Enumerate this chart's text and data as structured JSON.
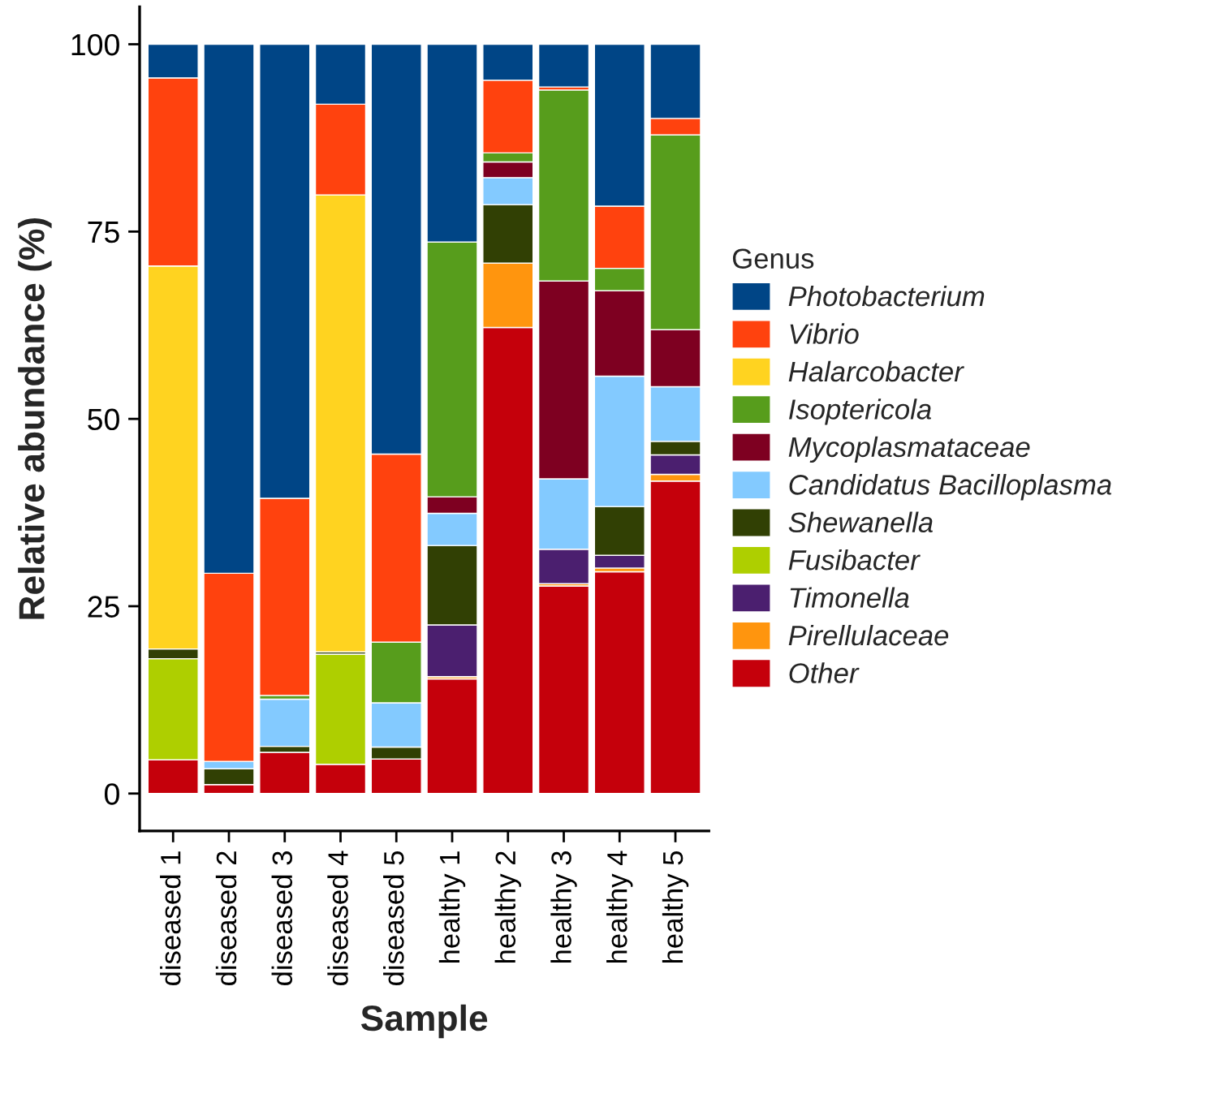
{
  "chart_data": {
    "type": "bar",
    "stacked": true,
    "xlabel": "Sample",
    "ylabel": "Relative abundance (%)",
    "legend_title": "Genus",
    "legend": "right",
    "categories": [
      "diseased 1",
      "diseased 2",
      "diseased 3",
      "diseased 4",
      "diseased 5",
      "healthy 1",
      "healthy 2",
      "healthy 3",
      "healthy 4",
      "healthy 5"
    ],
    "ylim": [
      -5,
      105
    ],
    "yticks": [
      0,
      25,
      50,
      75,
      100
    ],
    "series": [
      {
        "name": "Other",
        "color": "#c5000b",
        "values": [
          4.5,
          1.2,
          5.5,
          3.9,
          4.6,
          15.3,
          62.2,
          27.7,
          29.6,
          41.7
        ]
      },
      {
        "name": "Pirellulaceae",
        "color": "#ff950e",
        "values": [
          null,
          null,
          null,
          null,
          null,
          0.3,
          8.6,
          0.3,
          0.5,
          0.9
        ]
      },
      {
        "name": "Timonella",
        "color": "#4b1f6f",
        "values": [
          null,
          null,
          null,
          null,
          null,
          6.9,
          null,
          4.6,
          1.7,
          2.6
        ]
      },
      {
        "name": "Fusibacter",
        "color": "#aecf00",
        "values": [
          13.5,
          null,
          null,
          14.7,
          null,
          null,
          null,
          null,
          null,
          null
        ]
      },
      {
        "name": "Shewanella",
        "color": "#314004",
        "values": [
          1.3,
          2.1,
          0.8,
          0.3,
          1.6,
          10.6,
          7.8,
          null,
          6.5,
          1.8
        ]
      },
      {
        "name": "Candidatus Bacilloplasma",
        "color": "#83caff",
        "values": [
          null,
          1.0,
          6.3,
          null,
          5.9,
          4.3,
          3.6,
          9.4,
          17.4,
          7.3
        ]
      },
      {
        "name": "Mycoplasmataceae",
        "color": "#7e0021",
        "values": [
          null,
          null,
          null,
          null,
          null,
          2.2,
          2.1,
          26.4,
          11.4,
          7.6
        ]
      },
      {
        "name": "Isoptericola",
        "color": "#579d1c",
        "values": [
          null,
          null,
          0.5,
          null,
          8.1,
          34.0,
          1.2,
          25.5,
          3.0,
          26.0
        ]
      },
      {
        "name": "Halarcobacter",
        "color": "#ffd320",
        "values": [
          51.1,
          null,
          null,
          61.0,
          null,
          null,
          null,
          null,
          null,
          null
        ]
      },
      {
        "name": "Vibrio",
        "color": "#ff420e",
        "values": [
          25.1,
          25.1,
          26.3,
          12.1,
          25.1,
          null,
          9.7,
          0.4,
          8.3,
          2.2
        ]
      },
      {
        "name": "Photobacterium",
        "color": "#004586",
        "values": [
          4.5,
          70.6,
          60.6,
          8.0,
          54.7,
          26.4,
          4.8,
          5.7,
          21.6,
          9.9
        ]
      }
    ]
  }
}
